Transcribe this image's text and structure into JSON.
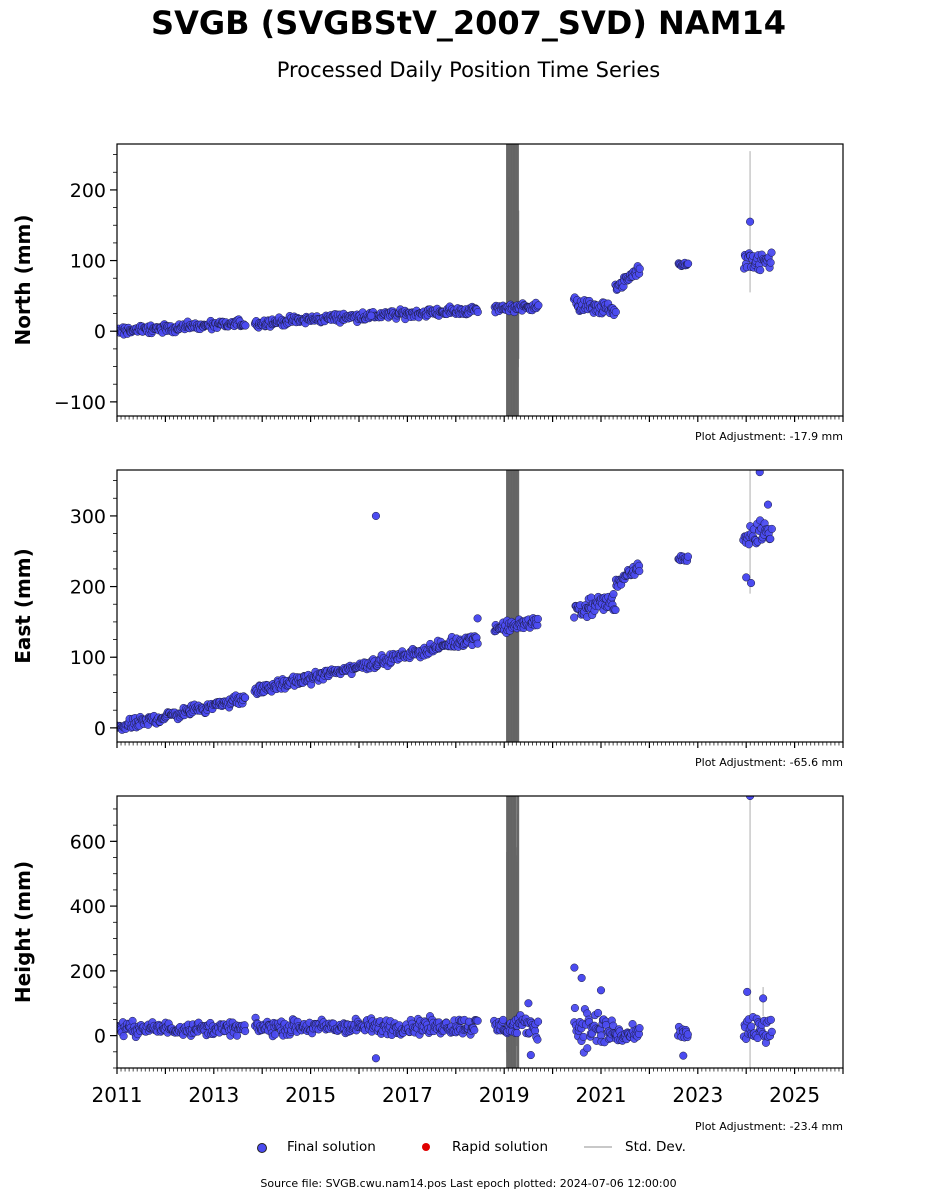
{
  "header": {
    "title": "SVGB (SVGBStV_2007_SVD) NAM14",
    "subtitle": "Processed Daily Position Time Series"
  },
  "legend": {
    "final": "Final solution",
    "rapid": "Rapid solution",
    "std": "Std. Dev."
  },
  "footer": {
    "source": "Source file: SVGB.cwu.nam14.pos  Last epoch plotted: 2024-07-06 12:00:00"
  },
  "colors": {
    "final": "#4b4bf0",
    "rapid": "#e00000",
    "std": "#c8c8c8",
    "dense_std": "#666666"
  },
  "chart_data": [
    {
      "type": "scatter",
      "ylabel": "North (mm)",
      "adjustment": "Plot Adjustment: -17.9 mm",
      "xlim": [
        2011.0,
        2026.0
      ],
      "ylim": [
        -120,
        265
      ],
      "yticks": [
        -100,
        0,
        100,
        200
      ],
      "ytick_labels": [
        "−100",
        "0",
        "100",
        "200"
      ],
      "show_x_tick_labels": false,
      "segments": [
        {
          "x": [
            2011.0,
            2013.65
          ],
          "y": [
            0,
            11
          ],
          "noise": 4
        },
        {
          "x": [
            2013.85,
            2015.5
          ],
          "y": [
            11,
            19
          ],
          "noise": 4
        },
        {
          "x": [
            2015.5,
            2018.45
          ],
          "y": [
            19,
            30
          ],
          "noise": 4
        },
        {
          "x": [
            2018.8,
            2019.7
          ],
          "y": [
            32,
            36
          ],
          "noise": 4
        },
        {
          "x": [
            2020.45,
            2021.3
          ],
          "y": [
            38,
            30
          ],
          "noise": 7
        },
        {
          "x": [
            2021.3,
            2021.8
          ],
          "y": [
            60,
            88
          ],
          "noise": 5
        },
        {
          "x": [
            2022.6,
            2022.8
          ],
          "y": [
            94,
            95
          ],
          "noise": 2
        },
        {
          "x": [
            2023.95,
            2024.52
          ],
          "y": [
            95,
            100
          ],
          "noise": 10
        }
      ],
      "outliers": [
        {
          "x": 2024.08,
          "y": 155
        },
        {
          "x": 2016.25,
          "y": 22
        }
      ],
      "error_band": {
        "x": [
          2019.05,
          2019.3
        ],
        "y": [
          -120,
          265
        ]
      },
      "error_bars": [
        {
          "x": 2024.08,
          "y": [
            55,
            255
          ]
        }
      ]
    },
    {
      "type": "scatter",
      "ylabel": "East (mm)",
      "adjustment": "Plot Adjustment: -65.6 mm",
      "xlim": [
        2011.0,
        2026.0
      ],
      "ylim": [
        -20,
        365
      ],
      "yticks": [
        0,
        100,
        200,
        300
      ],
      "ytick_labels": [
        "0",
        "100",
        "200",
        "300"
      ],
      "show_x_tick_labels": false,
      "segments": [
        {
          "x": [
            2011.0,
            2013.65
          ],
          "y": [
            0,
            42
          ],
          "noise": 5
        },
        {
          "x": [
            2013.85,
            2016.5
          ],
          "y": [
            52,
            95
          ],
          "noise": 5
        },
        {
          "x": [
            2016.5,
            2018.45
          ],
          "y": [
            95,
            128
          ],
          "noise": 5
        },
        {
          "x": [
            2018.8,
            2019.7
          ],
          "y": [
            140,
            150
          ],
          "noise": 6
        },
        {
          "x": [
            2020.45,
            2021.3
          ],
          "y": [
            168,
            178
          ],
          "noise": 10
        },
        {
          "x": [
            2021.3,
            2021.8
          ],
          "y": [
            205,
            225
          ],
          "noise": 6
        },
        {
          "x": [
            2022.6,
            2022.8
          ],
          "y": [
            240,
            240
          ],
          "noise": 3
        },
        {
          "x": [
            2023.95,
            2024.52
          ],
          "y": [
            268,
            280
          ],
          "noise": 12
        }
      ],
      "outliers": [
        {
          "x": 2016.35,
          "y": 300
        },
        {
          "x": 2024.28,
          "y": 362
        },
        {
          "x": 2024.45,
          "y": 316
        },
        {
          "x": 2024.0,
          "y": 213
        },
        {
          "x": 2024.1,
          "y": 205
        },
        {
          "x": 2018.45,
          "y": 155
        }
      ],
      "error_band": {
        "x": [
          2019.05,
          2019.3
        ],
        "y": [
          -20,
          365
        ]
      },
      "error_bars": [
        {
          "x": 2024.08,
          "y": [
            190,
            365
          ]
        }
      ]
    },
    {
      "type": "scatter",
      "ylabel": "Height (mm)",
      "adjustment": "Plot Adjustment: -23.4 mm",
      "xlim": [
        2011.0,
        2026.0
      ],
      "ylim": [
        -100,
        740
      ],
      "yticks": [
        0,
        200,
        400,
        600
      ],
      "ytick_labels": [
        "0",
        "200",
        "400",
        "600"
      ],
      "show_x_tick_labels": true,
      "xticks": [
        2011,
        2013,
        2015,
        2017,
        2019,
        2021,
        2023,
        2025
      ],
      "xtick_labels": [
        "2011",
        "2013",
        "2015",
        "2017",
        "2019",
        "2021",
        "2023",
        "2025"
      ],
      "segments": [
        {
          "x": [
            2011.0,
            2013.65
          ],
          "y": [
            22,
            22
          ],
          "noise": 14
        },
        {
          "x": [
            2013.85,
            2016.3
          ],
          "y": [
            24,
            28
          ],
          "noise": 16
        },
        {
          "x": [
            2016.3,
            2018.45
          ],
          "y": [
            26,
            30
          ],
          "noise": 18
        },
        {
          "x": [
            2018.8,
            2019.7
          ],
          "y": [
            28,
            30
          ],
          "noise": 22
        },
        {
          "x": [
            2020.45,
            2021.3
          ],
          "y": [
            30,
            10
          ],
          "noise": 45
        },
        {
          "x": [
            2021.3,
            2021.8
          ],
          "y": [
            0,
            0
          ],
          "noise": 18
        },
        {
          "x": [
            2022.6,
            2022.8
          ],
          "y": [
            5,
            5
          ],
          "noise": 15
        },
        {
          "x": [
            2023.95,
            2024.52
          ],
          "y": [
            20,
            10
          ],
          "noise": 40
        }
      ],
      "outliers": [
        {
          "x": 2024.08,
          "y": 740
        },
        {
          "x": 2024.02,
          "y": 135
        },
        {
          "x": 2024.35,
          "y": 115
        },
        {
          "x": 2020.45,
          "y": 210
        },
        {
          "x": 2020.6,
          "y": 178
        },
        {
          "x": 2021.0,
          "y": 140
        },
        {
          "x": 2016.35,
          "y": -70
        },
        {
          "x": 2019.55,
          "y": -60
        },
        {
          "x": 2022.7,
          "y": -62
        },
        {
          "x": 2019.5,
          "y": 100
        }
      ],
      "error_band": {
        "x": [
          2019.05,
          2019.3
        ],
        "y": [
          -100,
          740
        ]
      },
      "error_bars": [
        {
          "x": 2024.08,
          "y": [
            -100,
            740
          ]
        },
        {
          "x": 2024.35,
          "y": [
            60,
            150
          ]
        }
      ]
    }
  ]
}
